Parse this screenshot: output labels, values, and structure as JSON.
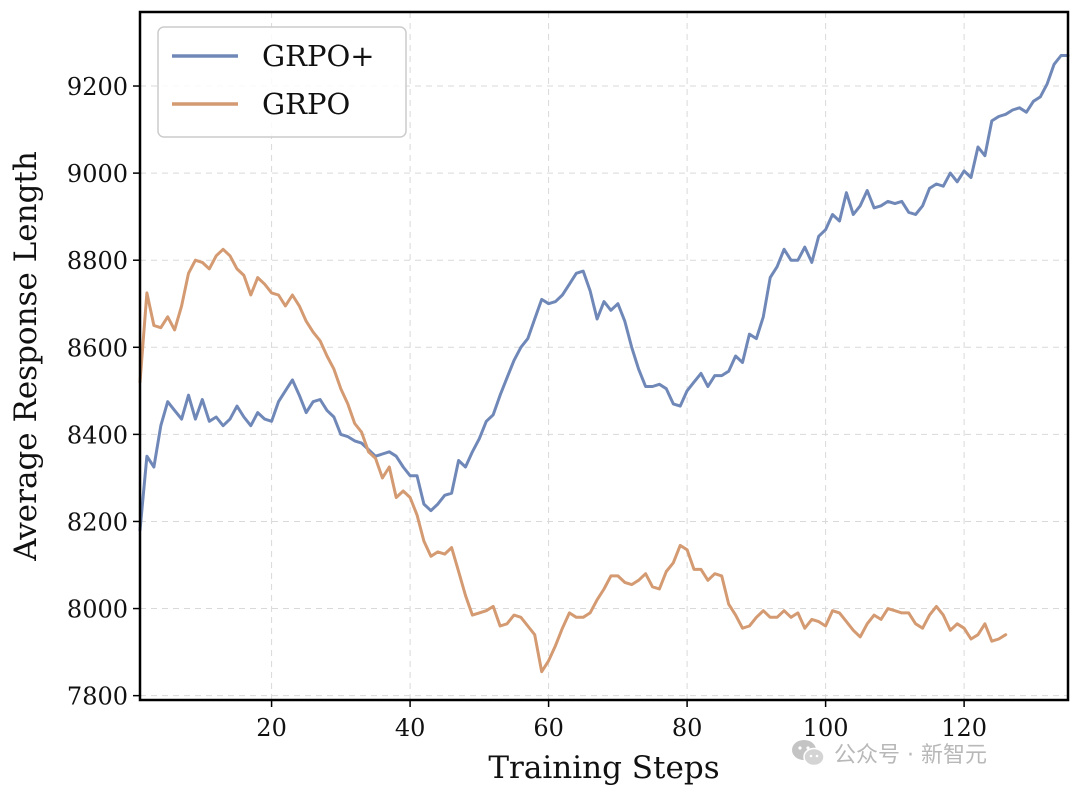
{
  "chart_data": {
    "type": "line",
    "title": "",
    "xlabel": "Training Steps",
    "ylabel": "Average Response Length",
    "xlim": [
      1,
      135
    ],
    "ylim": [
      7790,
      9370
    ],
    "xticks": [
      20,
      40,
      60,
      80,
      100,
      120
    ],
    "yticks": [
      7800,
      8000,
      8200,
      8400,
      8600,
      8800,
      9000,
      9200
    ],
    "grid": true,
    "legend_position": "top-left",
    "series": [
      {
        "name": "GRPO+",
        "color": "#7088b8",
        "points": [
          [
            1,
            8180
          ],
          [
            2,
            8350
          ],
          [
            3,
            8325
          ],
          [
            4,
            8420
          ],
          [
            5,
            8475
          ],
          [
            6,
            8455
          ],
          [
            7,
            8435
          ],
          [
            8,
            8490
          ],
          [
            9,
            8435
          ],
          [
            10,
            8480
          ],
          [
            11,
            8430
          ],
          [
            12,
            8440
          ],
          [
            13,
            8420
          ],
          [
            14,
            8435
          ],
          [
            15,
            8465
          ],
          [
            16,
            8440
          ],
          [
            17,
            8420
          ],
          [
            18,
            8450
          ],
          [
            19,
            8435
          ],
          [
            20,
            8430
          ],
          [
            21,
            8475
          ],
          [
            22,
            8500
          ],
          [
            23,
            8525
          ],
          [
            24,
            8490
          ],
          [
            25,
            8450
          ],
          [
            26,
            8475
          ],
          [
            27,
            8480
          ],
          [
            28,
            8455
          ],
          [
            29,
            8440
          ],
          [
            30,
            8400
          ],
          [
            31,
            8395
          ],
          [
            32,
            8385
          ],
          [
            33,
            8380
          ],
          [
            34,
            8365
          ],
          [
            35,
            8350
          ],
          [
            36,
            8355
          ],
          [
            37,
            8360
          ],
          [
            38,
            8350
          ],
          [
            39,
            8325
          ],
          [
            40,
            8305
          ],
          [
            41,
            8305
          ],
          [
            42,
            8240
          ],
          [
            43,
            8225
          ],
          [
            44,
            8240
          ],
          [
            45,
            8260
          ],
          [
            46,
            8265
          ],
          [
            47,
            8340
          ],
          [
            48,
            8325
          ],
          [
            49,
            8360
          ],
          [
            50,
            8390
          ],
          [
            51,
            8430
          ],
          [
            52,
            8445
          ],
          [
            53,
            8490
          ],
          [
            54,
            8530
          ],
          [
            55,
            8570
          ],
          [
            56,
            8600
          ],
          [
            57,
            8620
          ],
          [
            58,
            8665
          ],
          [
            59,
            8710
          ],
          [
            60,
            8700
          ],
          [
            61,
            8705
          ],
          [
            62,
            8720
          ],
          [
            63,
            8745
          ],
          [
            64,
            8770
          ],
          [
            65,
            8775
          ],
          [
            66,
            8730
          ],
          [
            67,
            8665
          ],
          [
            68,
            8705
          ],
          [
            69,
            8685
          ],
          [
            70,
            8700
          ],
          [
            71,
            8660
          ],
          [
            72,
            8600
          ],
          [
            73,
            8550
          ],
          [
            74,
            8510
          ],
          [
            75,
            8510
          ],
          [
            76,
            8515
          ],
          [
            77,
            8505
          ],
          [
            78,
            8470
          ],
          [
            79,
            8465
          ],
          [
            80,
            8500
          ],
          [
            81,
            8520
          ],
          [
            82,
            8540
          ],
          [
            83,
            8510
          ],
          [
            84,
            8535
          ],
          [
            85,
            8535
          ],
          [
            86,
            8545
          ],
          [
            87,
            8580
          ],
          [
            88,
            8565
          ],
          [
            89,
            8630
          ],
          [
            90,
            8620
          ],
          [
            91,
            8670
          ],
          [
            92,
            8760
          ],
          [
            93,
            8785
          ],
          [
            94,
            8825
          ],
          [
            95,
            8800
          ],
          [
            96,
            8800
          ],
          [
            97,
            8830
          ],
          [
            98,
            8795
          ],
          [
            99,
            8855
          ],
          [
            100,
            8870
          ],
          [
            101,
            8905
          ],
          [
            102,
            8890
          ],
          [
            103,
            8955
          ],
          [
            104,
            8905
          ],
          [
            105,
            8925
          ],
          [
            106,
            8960
          ],
          [
            107,
            8920
          ],
          [
            108,
            8925
          ],
          [
            109,
            8935
          ],
          [
            110,
            8930
          ],
          [
            111,
            8935
          ],
          [
            112,
            8910
          ],
          [
            113,
            8905
          ],
          [
            114,
            8925
          ],
          [
            115,
            8965
          ],
          [
            116,
            8975
          ],
          [
            117,
            8970
          ],
          [
            118,
            9000
          ],
          [
            119,
            8980
          ],
          [
            120,
            9005
          ],
          [
            121,
            8990
          ],
          [
            122,
            9060
          ],
          [
            123,
            9040
          ],
          [
            124,
            9120
          ],
          [
            125,
            9130
          ],
          [
            126,
            9135
          ],
          [
            127,
            9145
          ],
          [
            128,
            9150
          ],
          [
            129,
            9140
          ],
          [
            130,
            9165
          ],
          [
            131,
            9175
          ],
          [
            132,
            9205
          ],
          [
            133,
            9250
          ],
          [
            134,
            9270
          ],
          [
            135,
            9270
          ]
        ]
      },
      {
        "name": "GRPO",
        "color": "#d49a72",
        "points": [
          [
            1,
            8520
          ],
          [
            2,
            8725
          ],
          [
            3,
            8650
          ],
          [
            4,
            8645
          ],
          [
            5,
            8670
          ],
          [
            6,
            8640
          ],
          [
            7,
            8695
          ],
          [
            8,
            8770
          ],
          [
            9,
            8800
          ],
          [
            10,
            8795
          ],
          [
            11,
            8780
          ],
          [
            12,
            8810
          ],
          [
            13,
            8825
          ],
          [
            14,
            8810
          ],
          [
            15,
            8780
          ],
          [
            16,
            8765
          ],
          [
            17,
            8720
          ],
          [
            18,
            8760
          ],
          [
            19,
            8745
          ],
          [
            20,
            8725
          ],
          [
            21,
            8720
          ],
          [
            22,
            8695
          ],
          [
            23,
            8720
          ],
          [
            24,
            8695
          ],
          [
            25,
            8660
          ],
          [
            26,
            8635
          ],
          [
            27,
            8615
          ],
          [
            28,
            8580
          ],
          [
            29,
            8550
          ],
          [
            30,
            8505
          ],
          [
            31,
            8470
          ],
          [
            32,
            8425
          ],
          [
            33,
            8405
          ],
          [
            34,
            8360
          ],
          [
            35,
            8345
          ],
          [
            36,
            8300
          ],
          [
            37,
            8325
          ],
          [
            38,
            8255
          ],
          [
            39,
            8270
          ],
          [
            40,
            8255
          ],
          [
            41,
            8215
          ],
          [
            42,
            8155
          ],
          [
            43,
            8120
          ],
          [
            44,
            8130
          ],
          [
            45,
            8125
          ],
          [
            46,
            8140
          ],
          [
            47,
            8085
          ],
          [
            48,
            8030
          ],
          [
            49,
            7985
          ],
          [
            50,
            7990
          ],
          [
            51,
            7995
          ],
          [
            52,
            8005
          ],
          [
            53,
            7960
          ],
          [
            54,
            7965
          ],
          [
            55,
            7985
          ],
          [
            56,
            7980
          ],
          [
            57,
            7960
          ],
          [
            58,
            7940
          ],
          [
            59,
            7855
          ],
          [
            60,
            7880
          ],
          [
            61,
            7915
          ],
          [
            62,
            7955
          ],
          [
            63,
            7990
          ],
          [
            64,
            7980
          ],
          [
            65,
            7980
          ],
          [
            66,
            7990
          ],
          [
            67,
            8020
          ],
          [
            68,
            8045
          ],
          [
            69,
            8075
          ],
          [
            70,
            8075
          ],
          [
            71,
            8060
          ],
          [
            72,
            8055
          ],
          [
            73,
            8065
          ],
          [
            74,
            8080
          ],
          [
            75,
            8050
          ],
          [
            76,
            8045
          ],
          [
            77,
            8085
          ],
          [
            78,
            8105
          ],
          [
            79,
            8145
          ],
          [
            80,
            8135
          ],
          [
            81,
            8090
          ],
          [
            82,
            8090
          ],
          [
            83,
            8065
          ],
          [
            84,
            8080
          ],
          [
            85,
            8075
          ],
          [
            86,
            8010
          ],
          [
            87,
            7985
          ],
          [
            88,
            7955
          ],
          [
            89,
            7960
          ],
          [
            90,
            7980
          ],
          [
            91,
            7995
          ],
          [
            92,
            7980
          ],
          [
            93,
            7980
          ],
          [
            94,
            7995
          ],
          [
            95,
            7980
          ],
          [
            96,
            7990
          ],
          [
            97,
            7955
          ],
          [
            98,
            7975
          ],
          [
            99,
            7970
          ],
          [
            100,
            7960
          ],
          [
            101,
            7995
          ],
          [
            102,
            7990
          ],
          [
            103,
            7970
          ],
          [
            104,
            7950
          ],
          [
            105,
            7935
          ],
          [
            106,
            7965
          ],
          [
            107,
            7985
          ],
          [
            108,
            7975
          ],
          [
            109,
            8000
          ],
          [
            110,
            7995
          ],
          [
            111,
            7990
          ],
          [
            112,
            7990
          ],
          [
            113,
            7965
          ],
          [
            114,
            7955
          ],
          [
            115,
            7985
          ],
          [
            116,
            8005
          ],
          [
            117,
            7985
          ],
          [
            118,
            7950
          ],
          [
            119,
            7965
          ],
          [
            120,
            7955
          ],
          [
            121,
            7930
          ],
          [
            122,
            7940
          ],
          [
            123,
            7965
          ],
          [
            124,
            7925
          ],
          [
            125,
            7930
          ],
          [
            126,
            7940
          ]
        ]
      }
    ]
  },
  "watermark": {
    "icon": "wechat-icon",
    "text": "公众号 · 新智元"
  }
}
